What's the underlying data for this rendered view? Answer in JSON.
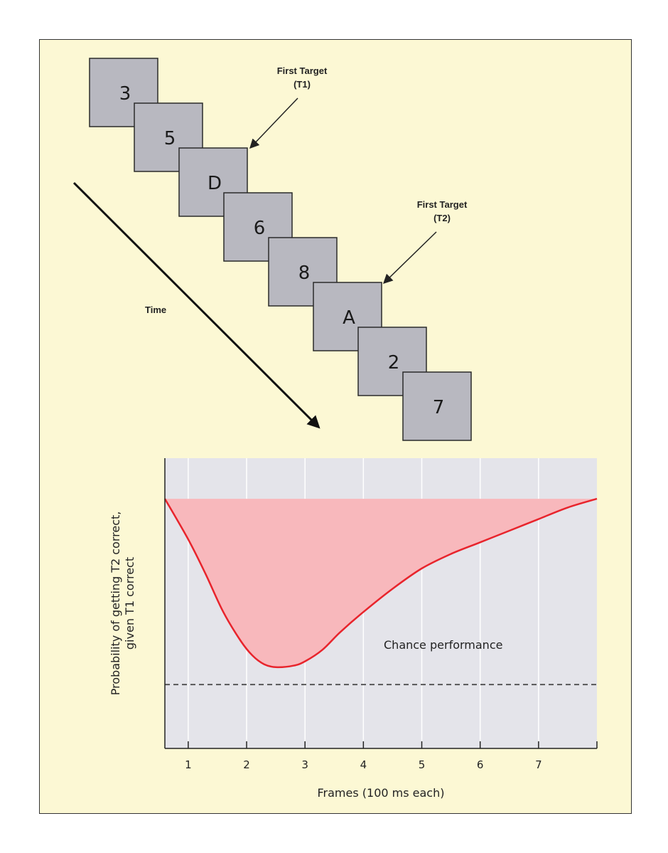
{
  "sequence": {
    "frames": [
      "3",
      "5",
      "D",
      "6",
      "8",
      "A",
      "2",
      "7"
    ],
    "time_label": "Time",
    "callout_t1": {
      "line1": "First Target",
      "line2": "(T1)"
    },
    "callout_t2": {
      "line1": "First Target",
      "line2": "(T2)"
    }
  },
  "chart_data": {
    "type": "area",
    "xlabel": "Frames (100 ms each)",
    "ylabel_line1": "Probability of getting T2 correct,",
    "ylabel_line2": "given T1 correct",
    "xticks": [
      "1",
      "2",
      "3",
      "4",
      "5",
      "6",
      "7"
    ],
    "xlim": [
      0.6,
      8.0
    ],
    "ylim": [
      0,
      1
    ],
    "grid": true,
    "baseline_level": 0.86,
    "chance_level": 0.22,
    "chance_label": "Chance performance",
    "x": [
      0.6,
      1.0,
      1.3,
      1.6,
      1.9,
      2.1,
      2.3,
      2.5,
      2.8,
      3.0,
      3.3,
      3.6,
      4.0,
      4.5,
      5.0,
      5.5,
      6.0,
      6.5,
      7.0,
      7.5,
      8.0
    ],
    "y": [
      0.86,
      0.72,
      0.6,
      0.47,
      0.37,
      0.32,
      0.29,
      0.28,
      0.285,
      0.3,
      0.34,
      0.4,
      0.47,
      0.55,
      0.62,
      0.67,
      0.71,
      0.75,
      0.79,
      0.83,
      0.86
    ],
    "colors": {
      "curve": "#e8242c",
      "fill": "#f8b8bc",
      "plot_bg": "#e4e4ea",
      "chance_line": "#444444",
      "grid": "#ffffff"
    }
  }
}
